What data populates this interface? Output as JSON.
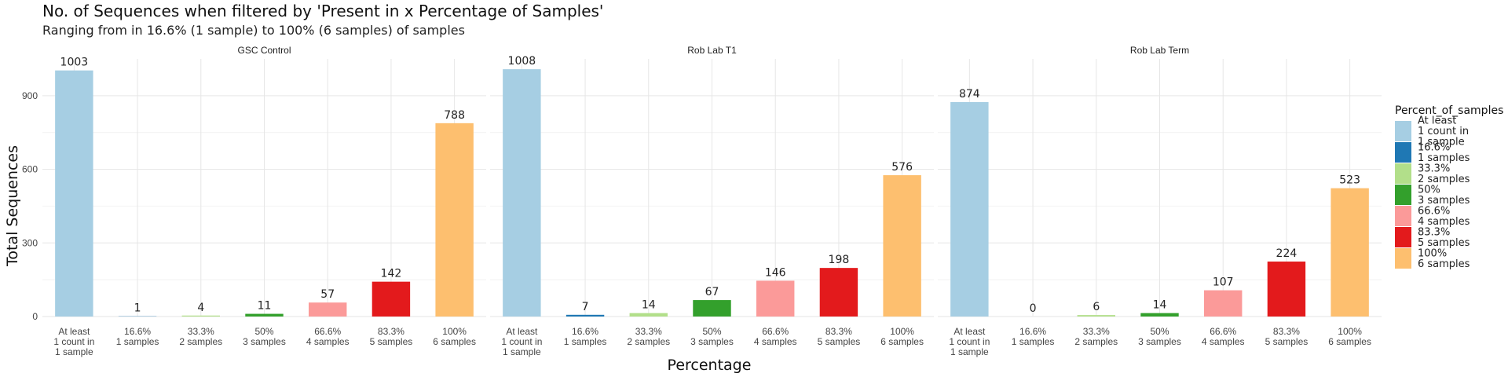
{
  "chart_data": {
    "type": "bar",
    "title": "No. of Sequences when filtered by 'Present in x Percentage of Samples'",
    "subtitle": "Ranging from in 16.6% (1 sample) to 100% (6 samples) of samples",
    "xlabel": "Percentage",
    "ylabel": "Total Sequences",
    "ylim": [
      0,
      1050
    ],
    "yticks": [
      0,
      300,
      600,
      900
    ],
    "grid": true,
    "legend": {
      "title": "Percent_of_samples",
      "placement": "right",
      "entries": [
        {
          "lines": [
            "At least",
            "1 count in",
            "1 sample"
          ],
          "color": "#a6cee3"
        },
        {
          "lines": [
            "16.6%",
            "1 samples"
          ],
          "color": "#1f78b4"
        },
        {
          "lines": [
            "33.3%",
            "2 samples"
          ],
          "color": "#b2df8a"
        },
        {
          "lines": [
            "50%",
            "3 samples"
          ],
          "color": "#33a02c"
        },
        {
          "lines": [
            "66.6%",
            "4 samples"
          ],
          "color": "#fb9a99"
        },
        {
          "lines": [
            "83.3%",
            "5 samples"
          ],
          "color": "#e31a1c"
        },
        {
          "lines": [
            "100%",
            "6 samples"
          ],
          "color": "#fdbf6f"
        }
      ]
    },
    "categories": [
      [
        "At least",
        "1 count in",
        "1 sample"
      ],
      [
        "16.6%",
        "1 samples"
      ],
      [
        "33.3%",
        "2 samples"
      ],
      [
        "50%",
        "3 samples"
      ],
      [
        "66.6%",
        "4 samples"
      ],
      [
        "83.3%",
        "5 samples"
      ],
      [
        "100%",
        "6 samples"
      ]
    ],
    "panels": [
      {
        "name": "GSC Control",
        "values": [
          1003,
          1,
          4,
          11,
          57,
          142,
          788
        ]
      },
      {
        "name": "Rob Lab T1",
        "values": [
          1008,
          7,
          14,
          67,
          146,
          198,
          576
        ]
      },
      {
        "name": "Rob Lab Term",
        "values": [
          874,
          0,
          6,
          14,
          107,
          224,
          523
        ]
      }
    ]
  }
}
